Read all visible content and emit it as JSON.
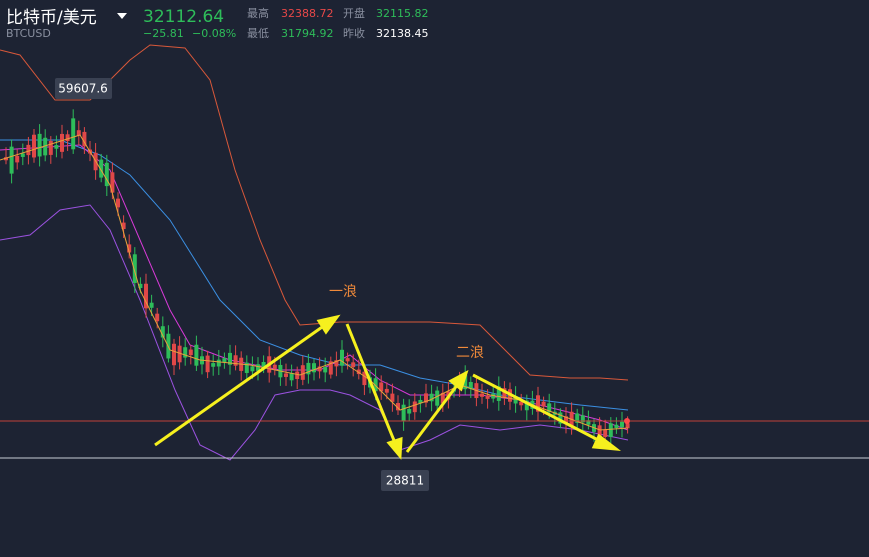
{
  "header": {
    "title": "比特币/美元",
    "symbol": "BTCUSD",
    "price": "32112.64",
    "change": "−25.81",
    "change_pct": "−0.08%",
    "stats": [
      {
        "label": "最高",
        "value": "32388.72"
      },
      {
        "label": "开盘",
        "value": "32115.82"
      },
      {
        "label": "最低",
        "value": "31794.92"
      },
      {
        "label": "昨收",
        "value": "32138.45"
      }
    ]
  },
  "annotations": {
    "high_label": "59607.6",
    "low_label": "28811",
    "wave1": "一浪",
    "wave2": "二浪"
  }
}
